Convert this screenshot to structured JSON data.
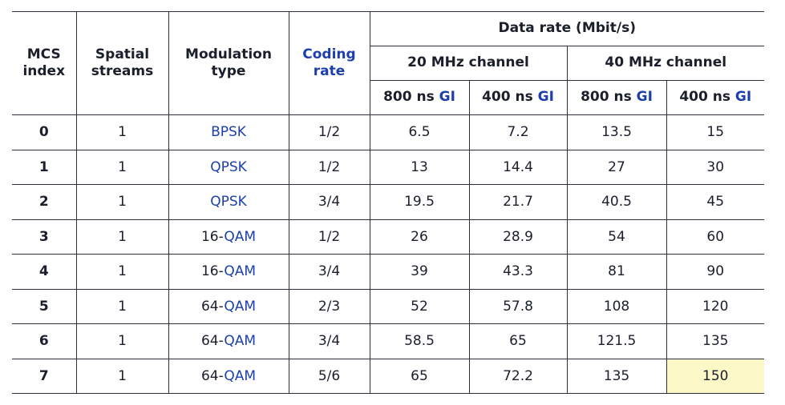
{
  "table": {
    "headers": {
      "mcs_index": "MCS index",
      "spatial_streams": "Spatial streams",
      "modulation_type": "Modulation type",
      "coding_rate": "Coding rate",
      "data_rate": "Data rate (Mbit/s)",
      "ch20": "20 MHz channel",
      "ch40": "40 MHz channel",
      "gi800": "800 ns",
      "gi400": "400 ns",
      "gi": "GI"
    },
    "rows": [
      {
        "mcs": "0",
        "streams": "1",
        "mod_prefix": "",
        "mod": "BPSK",
        "rate": "1/2",
        "r20_800": "6.5",
        "r20_400": "7.2",
        "r40_800": "13.5",
        "r40_400": "15"
      },
      {
        "mcs": "1",
        "streams": "1",
        "mod_prefix": "",
        "mod": "QPSK",
        "rate": "1/2",
        "r20_800": "13",
        "r20_400": "14.4",
        "r40_800": "27",
        "r40_400": "30"
      },
      {
        "mcs": "2",
        "streams": "1",
        "mod_prefix": "",
        "mod": "QPSK",
        "rate": "3/4",
        "r20_800": "19.5",
        "r20_400": "21.7",
        "r40_800": "40.5",
        "r40_400": "45"
      },
      {
        "mcs": "3",
        "streams": "1",
        "mod_prefix": "16-",
        "mod": "QAM",
        "rate": "1/2",
        "r20_800": "26",
        "r20_400": "28.9",
        "r40_800": "54",
        "r40_400": "60"
      },
      {
        "mcs": "4",
        "streams": "1",
        "mod_prefix": "16-",
        "mod": "QAM",
        "rate": "3/4",
        "r20_800": "39",
        "r20_400": "43.3",
        "r40_800": "81",
        "r40_400": "90"
      },
      {
        "mcs": "5",
        "streams": "1",
        "mod_prefix": "64-",
        "mod": "QAM",
        "rate": "2/3",
        "r20_800": "52",
        "r20_400": "57.8",
        "r40_800": "108",
        "r40_400": "120"
      },
      {
        "mcs": "6",
        "streams": "1",
        "mod_prefix": "64-",
        "mod": "QAM",
        "rate": "3/4",
        "r20_800": "58.5",
        "r20_400": "65",
        "r40_800": "121.5",
        "r40_400": "135"
      },
      {
        "mcs": "7",
        "streams": "1",
        "mod_prefix": "64-",
        "mod": "QAM",
        "rate": "5/6",
        "r20_800": "65",
        "r20_400": "72.2",
        "r40_800": "135",
        "r40_400": "150"
      }
    ],
    "highlight": {
      "row": 7,
      "column": "r40_400",
      "color": "#fdf8c7"
    },
    "accent_color": "#1d3fae"
  }
}
